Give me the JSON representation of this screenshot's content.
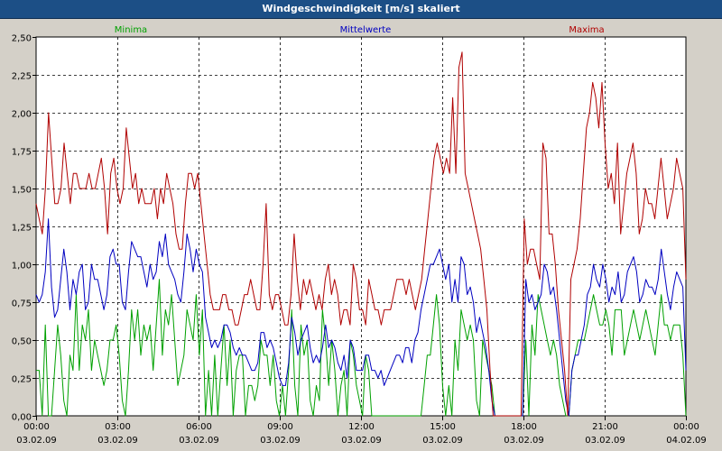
{
  "window": {
    "title": "Windgeschwindigkeit [m/s] skaliert"
  },
  "chart_data": {
    "type": "line",
    "title": "Windgeschwindigkeit [m/s] skaliert",
    "xlabel": "",
    "ylabel": "",
    "ylim": [
      0,
      2.5
    ],
    "xlim": [
      "03.02.09 00:00",
      "04.02.09 00:00"
    ],
    "grid": true,
    "yticks": [
      "0,00",
      "0,25",
      "0,50",
      "0,75",
      "1,00",
      "1,25",
      "1,50",
      "1,75",
      "2,00",
      "2,25",
      "2,50"
    ],
    "xticks": [
      {
        "time": "00:00",
        "date": "03.02.09"
      },
      {
        "time": "03:00",
        "date": "03.02.09"
      },
      {
        "time": "06:00",
        "date": "03.02.09"
      },
      {
        "time": "09:00",
        "date": "03.02.09"
      },
      {
        "time": "12:00",
        "date": "03.02.09"
      },
      {
        "time": "15:00",
        "date": "03.02.09"
      },
      {
        "time": "18:00",
        "date": "03.02.09"
      },
      {
        "time": "21:00",
        "date": "03.02.09"
      },
      {
        "time": "00:00",
        "date": "04.02.09"
      }
    ],
    "interval_minutes": 10,
    "series": [
      {
        "name": "Minima",
        "color": "#00a000",
        "values": [
          0.3,
          0.3,
          0.0,
          0.6,
          0.0,
          0.0,
          0.3,
          0.6,
          0.4,
          0.1,
          0.0,
          0.4,
          0.3,
          0.8,
          0.3,
          0.6,
          0.5,
          0.7,
          0.3,
          0.5,
          0.4,
          0.3,
          0.2,
          0.3,
          0.5,
          0.5,
          0.6,
          0.4,
          0.1,
          0.0,
          0.3,
          0.7,
          0.5,
          0.7,
          0.4,
          0.6,
          0.5,
          0.6,
          0.3,
          0.6,
          0.9,
          0.4,
          0.7,
          0.6,
          0.8,
          0.5,
          0.2,
          0.3,
          0.4,
          0.7,
          0.6,
          0.5,
          0.8,
          0.4,
          0.7,
          0.0,
          0.3,
          0.0,
          0.4,
          0.0,
          0.3,
          0.6,
          0.2,
          0.5,
          0.0,
          0.3,
          0.4,
          0.4,
          0.0,
          0.2,
          0.2,
          0.1,
          0.2,
          0.5,
          0.4,
          0.4,
          0.2,
          0.4,
          0.1,
          0.0,
          0.2,
          0.0,
          0.3,
          0.7,
          0.2,
          0.0,
          0.6,
          0.4,
          0.5,
          0.1,
          0.0,
          0.2,
          0.1,
          0.7,
          0.5,
          0.2,
          0.5,
          0.3,
          0.0,
          0.2,
          0.3,
          0.0,
          0.5,
          0.4,
          0.2,
          0.1,
          0.0,
          0.4,
          0.3,
          0.0,
          0.0,
          0.0,
          0.0,
          0.0,
          0.0,
          0.0,
          0.0,
          0.0,
          0.0,
          0.0,
          0.0,
          0.0,
          0.0,
          0.0,
          0.0,
          0.0,
          0.2,
          0.4,
          0.4,
          0.6,
          0.8,
          0.6,
          0.2,
          0.0,
          0.2,
          0.0,
          0.5,
          0.3,
          0.7,
          0.6,
          0.5,
          0.6,
          0.5,
          0.1,
          0.0,
          0.5,
          0.4,
          0.3,
          0.2,
          0.0,
          0.0,
          0.0,
          0.0,
          0.0,
          0.0,
          0.0,
          0.0,
          0.0,
          0.0,
          0.5,
          0.0,
          0.6,
          0.4,
          0.8,
          0.7,
          0.6,
          0.5,
          0.4,
          0.5,
          0.4,
          0.2,
          0.1,
          0.0,
          0.0,
          0.3,
          0.4,
          0.5,
          0.5,
          0.5,
          0.6,
          0.7,
          0.8,
          0.7,
          0.6,
          0.6,
          0.7,
          0.6,
          0.4,
          0.7,
          0.7,
          0.7,
          0.4,
          0.5,
          0.6,
          0.7,
          0.6,
          0.5,
          0.6,
          0.7,
          0.6,
          0.5,
          0.4,
          0.6,
          0.8,
          0.6,
          0.6,
          0.5,
          0.6,
          0.6,
          0.6,
          0.4,
          0.0
        ]
      },
      {
        "name": "Mittelwerte",
        "color": "#0000c0",
        "values": [
          0.8,
          0.75,
          0.8,
          0.95,
          1.3,
          0.85,
          0.65,
          0.7,
          0.9,
          1.1,
          0.95,
          0.7,
          0.9,
          0.8,
          0.95,
          1.0,
          0.7,
          0.75,
          1.0,
          0.9,
          0.9,
          0.8,
          0.7,
          0.8,
          1.05,
          1.1,
          1.0,
          1.0,
          0.75,
          0.7,
          0.95,
          1.15,
          1.1,
          1.05,
          1.05,
          0.95,
          0.85,
          1.0,
          0.9,
          0.95,
          1.15,
          1.05,
          1.2,
          1.0,
          0.95,
          0.9,
          0.8,
          0.75,
          0.95,
          1.2,
          1.1,
          0.95,
          1.1,
          1.0,
          0.95,
          0.65,
          0.55,
          0.45,
          0.5,
          0.45,
          0.5,
          0.6,
          0.6,
          0.55,
          0.45,
          0.4,
          0.45,
          0.4,
          0.4,
          0.35,
          0.3,
          0.3,
          0.35,
          0.55,
          0.55,
          0.45,
          0.5,
          0.45,
          0.35,
          0.25,
          0.2,
          0.2,
          0.35,
          0.65,
          0.55,
          0.4,
          0.5,
          0.55,
          0.6,
          0.45,
          0.35,
          0.4,
          0.35,
          0.45,
          0.6,
          0.45,
          0.5,
          0.45,
          0.35,
          0.3,
          0.4,
          0.25,
          0.5,
          0.45,
          0.3,
          0.3,
          0.3,
          0.4,
          0.4,
          0.3,
          0.3,
          0.25,
          0.3,
          0.2,
          0.25,
          0.3,
          0.35,
          0.4,
          0.4,
          0.35,
          0.45,
          0.45,
          0.35,
          0.5,
          0.55,
          0.7,
          0.8,
          0.9,
          1.0,
          1.0,
          1.05,
          1.1,
          1.0,
          0.9,
          1.0,
          0.75,
          0.9,
          0.75,
          1.05,
          1.0,
          0.8,
          0.85,
          0.75,
          0.55,
          0.65,
          0.55,
          0.45,
          0.3,
          0.1,
          0.0,
          0.0,
          0.0,
          0.0,
          0.0,
          0.0,
          0.0,
          0.0,
          0.0,
          0.0,
          0.9,
          0.75,
          0.8,
          0.7,
          0.75,
          0.8,
          1.0,
          0.95,
          0.8,
          0.85,
          0.7,
          0.5,
          0.3,
          0.1,
          0.0,
          0.3,
          0.4,
          0.4,
          0.5,
          0.6,
          0.8,
          0.85,
          1.0,
          0.9,
          0.85,
          1.0,
          0.9,
          0.75,
          0.85,
          0.8,
          0.95,
          0.75,
          0.8,
          0.95,
          1.0,
          1.05,
          0.95,
          0.75,
          0.8,
          0.9,
          0.85,
          0.85,
          0.8,
          0.9,
          1.1,
          0.95,
          0.8,
          0.7,
          0.85,
          0.95,
          0.9,
          0.85,
          0.3
        ]
      },
      {
        "name": "Maxima",
        "color": "#b00000",
        "values": [
          1.4,
          1.3,
          1.2,
          1.5,
          2.0,
          1.7,
          1.4,
          1.4,
          1.5,
          1.8,
          1.6,
          1.4,
          1.6,
          1.6,
          1.5,
          1.5,
          1.5,
          1.6,
          1.5,
          1.5,
          1.6,
          1.7,
          1.5,
          1.2,
          1.6,
          1.7,
          1.5,
          1.4,
          1.5,
          1.9,
          1.7,
          1.5,
          1.6,
          1.4,
          1.5,
          1.4,
          1.4,
          1.4,
          1.5,
          1.3,
          1.5,
          1.4,
          1.6,
          1.5,
          1.4,
          1.2,
          1.1,
          1.1,
          1.4,
          1.6,
          1.6,
          1.5,
          1.6,
          1.4,
          1.2,
          1.0,
          0.8,
          0.7,
          0.7,
          0.7,
          0.8,
          0.8,
          0.7,
          0.7,
          0.6,
          0.6,
          0.7,
          0.8,
          0.8,
          0.9,
          0.8,
          0.7,
          0.7,
          1.0,
          1.4,
          0.8,
          0.7,
          0.8,
          0.8,
          0.7,
          0.6,
          0.6,
          0.8,
          1.2,
          0.9,
          0.7,
          0.9,
          0.8,
          0.9,
          0.8,
          0.7,
          0.8,
          0.7,
          0.9,
          1.0,
          0.8,
          0.9,
          0.8,
          0.6,
          0.7,
          0.7,
          0.6,
          1.0,
          0.9,
          0.7,
          0.7,
          0.6,
          0.9,
          0.8,
          0.7,
          0.7,
          0.6,
          0.7,
          0.7,
          0.7,
          0.8,
          0.9,
          0.9,
          0.9,
          0.8,
          0.9,
          0.8,
          0.7,
          0.8,
          0.9,
          1.1,
          1.3,
          1.5,
          1.7,
          1.8,
          1.7,
          1.6,
          1.7,
          1.6,
          2.1,
          1.6,
          2.3,
          2.4,
          1.6,
          1.5,
          1.4,
          1.3,
          1.2,
          1.1,
          0.9,
          0.7,
          0.3,
          0.0,
          0.0,
          0.0,
          0.0,
          0.0,
          0.0,
          0.0,
          0.0,
          0.0,
          0.0,
          1.3,
          1.0,
          1.1,
          1.1,
          1.0,
          0.9,
          1.8,
          1.7,
          1.2,
          1.2,
          1.0,
          0.7,
          0.5,
          0.3,
          0.0,
          0.9,
          1.0,
          1.1,
          1.3,
          1.6,
          1.9,
          2.0,
          2.2,
          2.1,
          1.9,
          2.2,
          1.8,
          1.5,
          1.6,
          1.4,
          1.8,
          1.2,
          1.4,
          1.6,
          1.7,
          1.8,
          1.6,
          1.2,
          1.3,
          1.5,
          1.4,
          1.4,
          1.3,
          1.5,
          1.7,
          1.5,
          1.3,
          1.4,
          1.5,
          1.7,
          1.6,
          1.5,
          0.9
        ]
      }
    ]
  }
}
